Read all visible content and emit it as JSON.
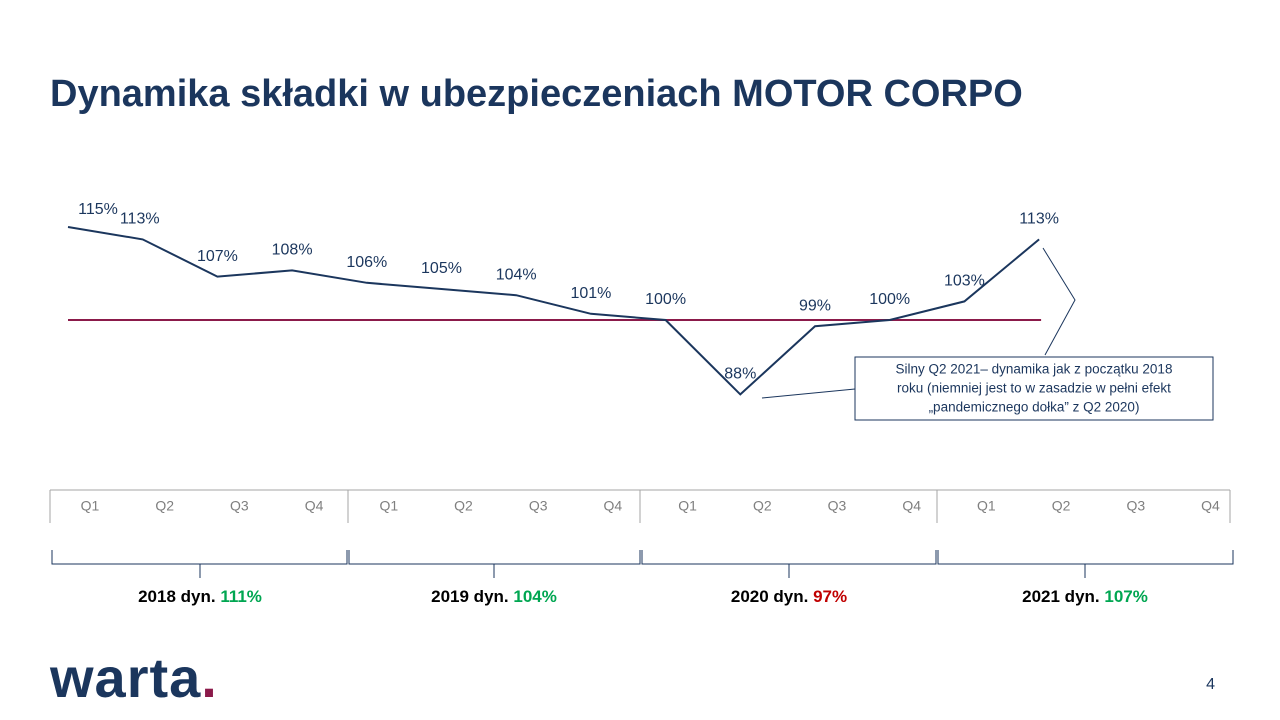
{
  "chart_data": {
    "type": "line",
    "title": "Dynamika składki w ubezpieczeniach MOTOR CORPO",
    "categories": [
      "Q1",
      "Q2",
      "Q3",
      "Q4",
      "Q1",
      "Q2",
      "Q3",
      "Q4",
      "Q1",
      "Q2",
      "Q3",
      "Q4",
      "Q1",
      "Q2",
      "Q3",
      "Q4"
    ],
    "series": [
      {
        "name": null,
        "color": "#1b365d",
        "values": [
          115,
          113,
          107,
          108,
          106,
          105,
          104,
          101,
          100,
          88,
          99,
          100,
          103,
          113,
          null,
          null
        ],
        "value_labels": [
          "115%",
          "113%",
          "107%",
          "108%",
          "106%",
          "105%",
          "104%",
          "101%",
          "100%",
          "88%",
          "99%",
          "100%",
          "103%",
          "113%",
          null,
          null
        ]
      }
    ],
    "ylim": [
      85,
      118
    ],
    "reference_line": {
      "value": 100,
      "color": "#8b1a4a"
    },
    "years": [
      {
        "label": "2018 dyn.",
        "value": 111,
        "value_label": "111%",
        "color": "#00a651"
      },
      {
        "label": "2019 dyn.",
        "value": 104,
        "value_label": "104%",
        "color": "#00a651"
      },
      {
        "label": "2020 dyn.",
        "value": 97,
        "value_label": "97%",
        "color": "#c00000"
      },
      {
        "label": "2021 dyn.",
        "value": 107,
        "value_label": "107%",
        "color": "#00a651"
      }
    ],
    "annotation": [
      "Silny Q2 2021– dynamika jak z początku 2018",
      "roku (niemniej jest to w zasadzie w pełni efekt",
      "„pandemicznego dołka” z Q2 2020)"
    ],
    "logo": {
      "text": "warta",
      "dot": "."
    },
    "page_number": "4"
  }
}
